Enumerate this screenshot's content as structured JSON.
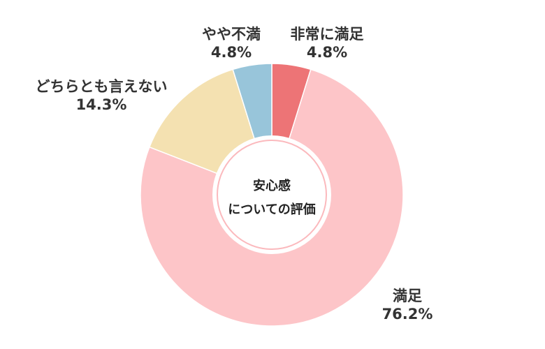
{
  "chart_data": {
    "type": "pie",
    "variant": "donut",
    "center_label": [
      "安心感",
      "についての評価"
    ],
    "slices": [
      {
        "label": "非常に満足",
        "value": 4.8,
        "value_label": "4.8%",
        "color": "#ed7476"
      },
      {
        "label": "満足",
        "value": 76.2,
        "value_label": "76.2%",
        "color": "#fdc5c8"
      },
      {
        "label": "どちらとも言えない",
        "value": 14.3,
        "value_label": "14.3%",
        "color": "#f4e1b1"
      },
      {
        "label": "やや不満",
        "value": 4.8,
        "value_label": "4.8%",
        "color": "#98c5da"
      }
    ],
    "start_angle_deg": 0,
    "direction": "clockwise",
    "legend": "none"
  }
}
